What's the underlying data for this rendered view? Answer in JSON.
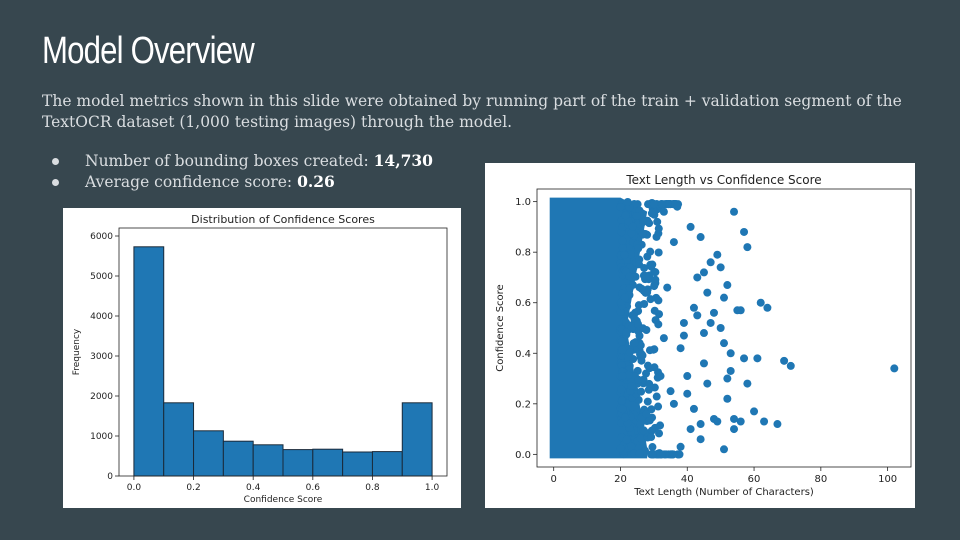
{
  "slide": {
    "title": "Model Overview",
    "intro": "The model metrics shown in this slide were obtained by running part of the train + validation segment of the TextOCR dataset (1,000 testing images) through the model.",
    "bullets": [
      {
        "label": "Number of bounding boxes created: ",
        "value": "14,730"
      },
      {
        "label": "Average confidence score: ",
        "value": "0.26"
      }
    ]
  },
  "colors": {
    "background": "#37474f",
    "series": "#1f77b4",
    "bar_edge": "#1a2a3a"
  },
  "chart_data": [
    {
      "type": "bar",
      "title": "Distribution of Confidence Scores",
      "xlabel": "Confidence Score",
      "ylabel": "Frequency",
      "bin_edges": [
        0.0,
        0.1,
        0.2,
        0.3,
        0.4,
        0.5,
        0.6,
        0.7,
        0.8,
        0.9,
        1.0
      ],
      "values": [
        5730,
        1830,
        1130,
        870,
        780,
        660,
        670,
        600,
        610,
        1830
      ],
      "xlim": [
        -0.05,
        1.05
      ],
      "ylim": [
        0,
        6200
      ],
      "xticks": [
        0.0,
        0.2,
        0.4,
        0.6,
        0.8,
        1.0
      ],
      "xtick_labels": [
        "0.0",
        "0.2",
        "0.4",
        "0.6",
        "0.8",
        "1.0"
      ],
      "yticks": [
        0,
        1000,
        2000,
        3000,
        4000,
        5000,
        6000
      ],
      "ytick_labels": [
        "0",
        "1000",
        "2000",
        "3000",
        "4000",
        "5000",
        "6000"
      ],
      "grid": false
    },
    {
      "type": "scatter",
      "title": "Text Length vs Confidence Score",
      "xlabel": "Text Length (Number of Characters)",
      "ylabel": "Confidence Score",
      "xlim": [
        -5,
        107
      ],
      "ylim": [
        -0.05,
        1.05
      ],
      "xticks": [
        0,
        20,
        40,
        60,
        80,
        100
      ],
      "xtick_labels": [
        "0",
        "20",
        "40",
        "60",
        "80",
        "100"
      ],
      "yticks": [
        0.0,
        0.2,
        0.4,
        0.6,
        0.8,
        1.0
      ],
      "ytick_labels": [
        "0.0",
        "0.2",
        "0.4",
        "0.6",
        "0.8",
        "1.0"
      ],
      "grid": false,
      "dense_region": {
        "x": [
          0,
          20
        ],
        "y": [
          0.0,
          1.0
        ],
        "taper_to_x": 28
      },
      "x": [
        54,
        58,
        45,
        36,
        49,
        52,
        51,
        48,
        62,
        64,
        56,
        55,
        43,
        47,
        50,
        33,
        38,
        61,
        69,
        71,
        51,
        53,
        57,
        45,
        40,
        46,
        58,
        52,
        60,
        54,
        49,
        44,
        41,
        56,
        102,
        67,
        63,
        44,
        38,
        42,
        54,
        51,
        48,
        36,
        35,
        32,
        39,
        46,
        43,
        50,
        57,
        41,
        37,
        44,
        47,
        53,
        40,
        34,
        42,
        45,
        31,
        30,
        33,
        39,
        52
      ],
      "y": [
        0.96,
        0.82,
        0.72,
        0.84,
        0.79,
        0.67,
        0.62,
        0.56,
        0.6,
        0.58,
        0.57,
        0.57,
        0.55,
        0.52,
        0.5,
        0.46,
        0.42,
        0.38,
        0.37,
        0.35,
        0.44,
        0.4,
        0.38,
        0.36,
        0.31,
        0.28,
        0.28,
        0.22,
        0.17,
        0.14,
        0.13,
        0.12,
        0.1,
        0.13,
        0.34,
        0.12,
        0.13,
        0.06,
        0.03,
        0.18,
        0.1,
        0.02,
        0.14,
        0.2,
        0.25,
        0.31,
        0.47,
        0.64,
        0.7,
        0.74,
        0.88,
        0.9,
        0.98,
        0.86,
        0.76,
        0.33,
        0.24,
        0.66,
        0.58,
        0.48,
        0.92,
        0.99,
        0.96,
        0.52,
        0.3
      ]
    }
  ]
}
